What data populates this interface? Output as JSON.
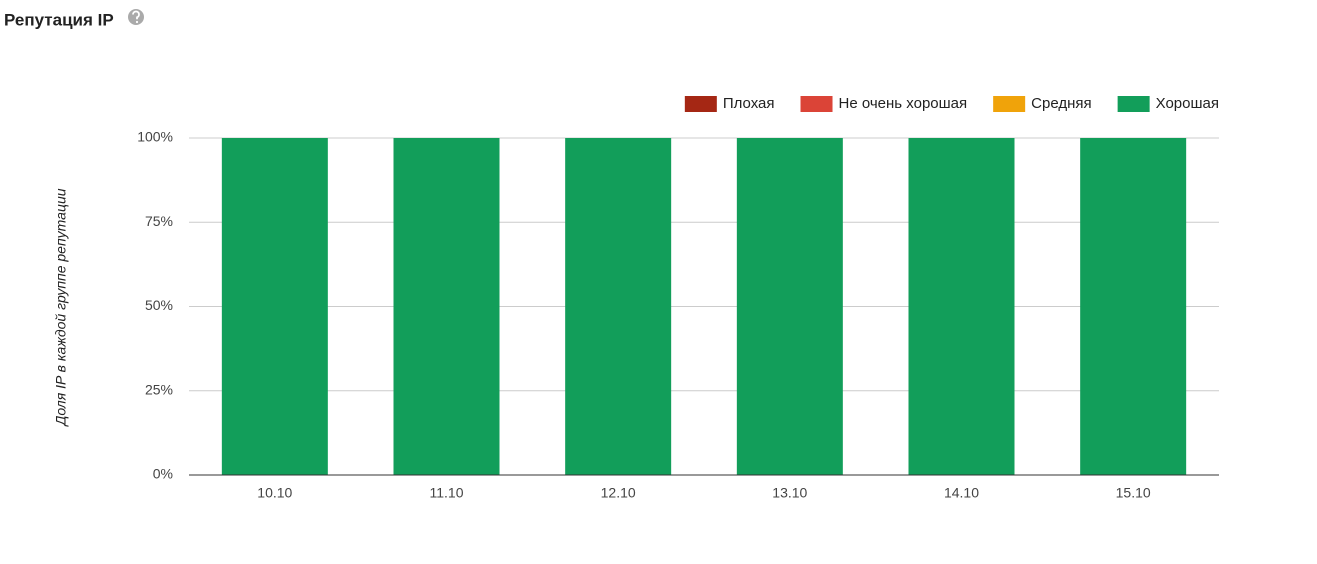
{
  "chart_data": {
    "type": "stacked-bar",
    "title": "Репутация IP",
    "y_label": "Доля IP в каждой группе репутации",
    "categories": [
      "10.10",
      "11.10",
      "12.10",
      "13.10",
      "14.10",
      "15.10"
    ],
    "series": [
      {
        "name": "Плохая",
        "color": "#a52714",
        "values": [
          0,
          0,
          0,
          0,
          0,
          0
        ]
      },
      {
        "name": "Не очень хорошая",
        "color": "#db4437",
        "values": [
          0,
          0,
          0,
          0,
          0,
          0
        ]
      },
      {
        "name": "Средняя",
        "color": "#f0a30a",
        "values": [
          0,
          0,
          0,
          0,
          0,
          0
        ]
      },
      {
        "name": "Хорошая",
        "color": "#129e5a",
        "values": [
          100,
          100,
          100,
          100,
          100,
          100
        ]
      }
    ],
    "ylim": [
      0,
      100
    ],
    "yticks": [
      {
        "value": 0,
        "label": "0%"
      },
      {
        "value": 25,
        "label": "25%"
      },
      {
        "value": 50,
        "label": "50%"
      },
      {
        "value": 75,
        "label": "75%"
      },
      {
        "value": 100,
        "label": "100%"
      }
    ],
    "grid": true,
    "legend": "top-right"
  }
}
